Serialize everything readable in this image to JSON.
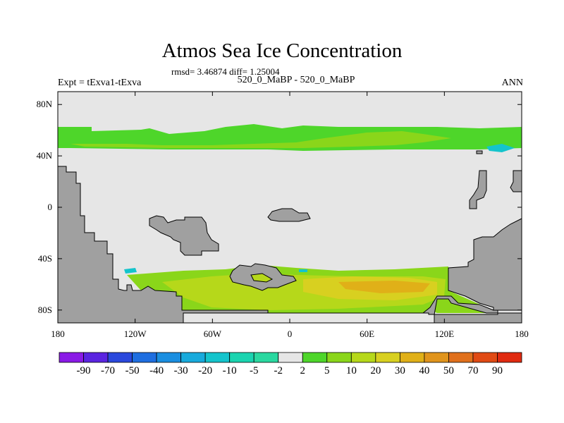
{
  "title": "Atmos Sea Ice Concentration",
  "stats_line": "rmsd= 3.46874 diff= 1.25004",
  "left_label": "Expt = tExva1-tExva",
  "center_label": "520_0_MaBP - 520_0_MaBP",
  "right_label": "ANN",
  "y_ticks": [
    "80N",
    "40N",
    "0",
    "40S",
    "80S"
  ],
  "x_ticks": [
    "180",
    "120W",
    "60W",
    "0",
    "60E",
    "120E",
    "180"
  ],
  "colorbar": {
    "labels": [
      "-90",
      "-70",
      "-50",
      "-40",
      "-30",
      "-20",
      "-10",
      "-5",
      "-2",
      "2",
      "5",
      "10",
      "20",
      "30",
      "40",
      "50",
      "70",
      "90"
    ],
    "colors": [
      "#8a1ae6",
      "#5a24e0",
      "#2a48dc",
      "#1e6ee0",
      "#1a8ee0",
      "#18aadc",
      "#14c4cc",
      "#1ad4b0",
      "#2ad8a0",
      "#e6e6e6",
      "#4ed62a",
      "#8ad61a",
      "#b6d81a",
      "#d8d020",
      "#e0b018",
      "#e0941c",
      "#e0701c",
      "#e04a14",
      "#e02a10"
    ]
  },
  "colors": {
    "land": "#a0a0a0",
    "ice_free": "#e6e6e6",
    "band_2_5": "#4ed62a",
    "band_5_10": "#8ad61a",
    "band_10_20": "#b6d81a",
    "band_20_30": "#d8d020",
    "band_30_40": "#e0b018",
    "negative": "#14c4cc"
  }
}
